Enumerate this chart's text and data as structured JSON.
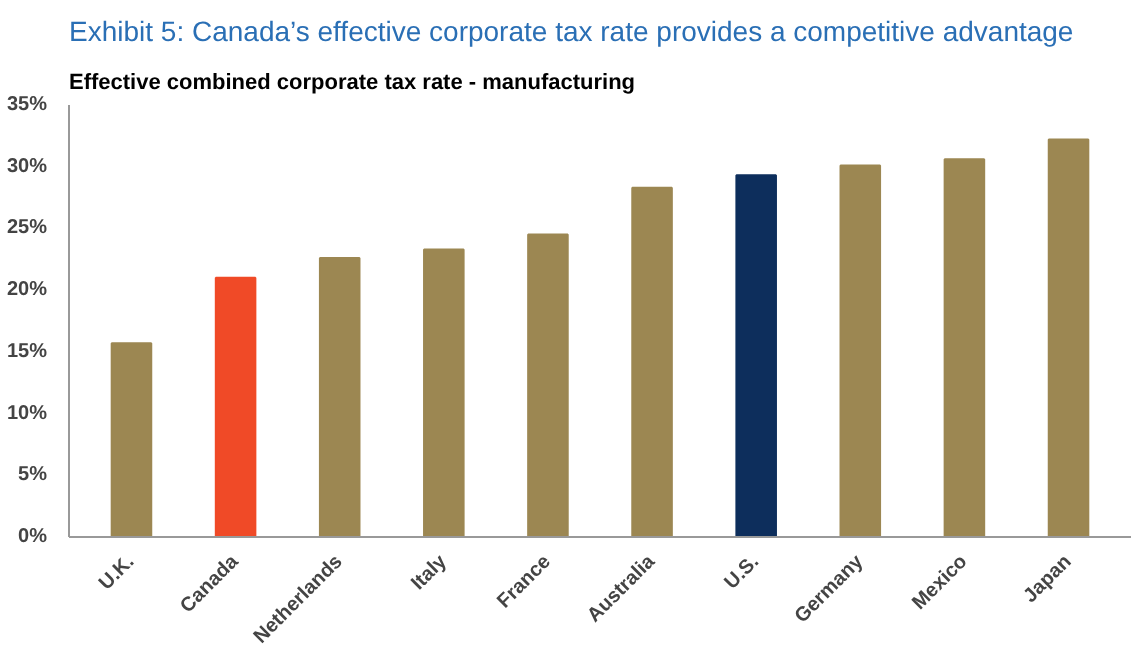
{
  "chart_data": {
    "type": "bar",
    "title": "Exhibit 5: Canada’s effective corporate tax rate provides a competitive advantage",
    "subtitle": "Effective combined corporate tax rate - manufacturing",
    "categories": [
      "U.K.",
      "Canada",
      "Netherlands",
      "Italy",
      "France",
      "Australia",
      "U.S.",
      "Germany",
      "Mexico",
      "Japan"
    ],
    "values": [
      15.7,
      21.0,
      22.6,
      23.3,
      24.5,
      28.3,
      29.3,
      30.1,
      30.6,
      32.2
    ],
    "colors": [
      "#9c8752",
      "#f04a27",
      "#9c8752",
      "#9c8752",
      "#9c8752",
      "#9c8752",
      "#0d2e5c",
      "#9c8752",
      "#9c8752",
      "#9c8752"
    ],
    "ylim": [
      0,
      35
    ],
    "yticks": [
      {
        "value": 0,
        "label": "0%"
      },
      {
        "value": 5,
        "label": "5%"
      },
      {
        "value": 10,
        "label": "10%"
      },
      {
        "value": 15,
        "label": "15%"
      },
      {
        "value": 20,
        "label": "20%"
      },
      {
        "value": 25,
        "label": "25%"
      },
      {
        "value": 30,
        "label": "30%"
      },
      {
        "value": 35,
        "label": "35%"
      }
    ],
    "grid": false
  }
}
